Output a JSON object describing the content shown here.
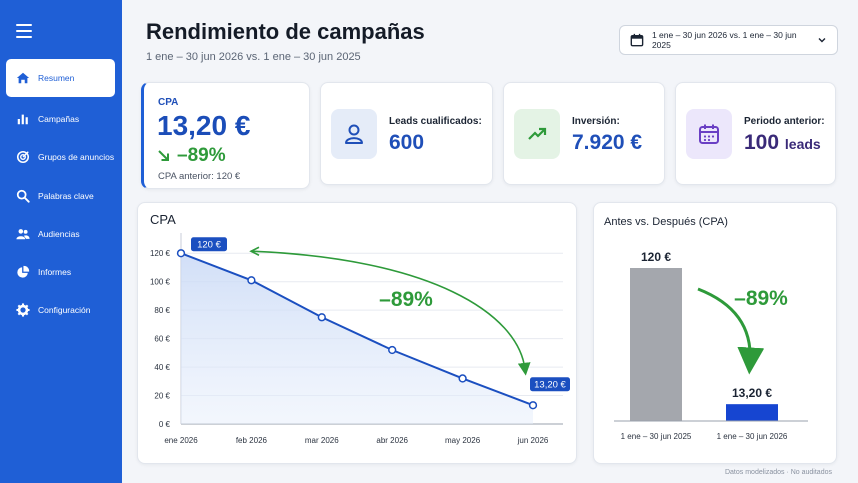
{
  "sidebar": {
    "items": [
      {
        "label": "Resumen",
        "icon": "home-icon",
        "active": true
      },
      {
        "label": "Campañas",
        "icon": "bar-chart-icon"
      },
      {
        "label": "Grupos de anuncios",
        "icon": "target-icon"
      },
      {
        "label": "Palabras clave",
        "icon": "search-icon"
      },
      {
        "label": "Audiencias",
        "icon": "users-icon"
      },
      {
        "label": "Informes",
        "icon": "pie-chart-icon"
      },
      {
        "label": "Configuración",
        "icon": "gear-icon"
      }
    ]
  },
  "header": {
    "title": "Rendimiento de campañas",
    "subtitle": "1 ene – 30 jun 2026 vs. 1 ene – 30 jun 2025",
    "date_range": "1 ene – 30 jun 2026 vs. 1 ene – 30 jun 2025"
  },
  "kpis": {
    "cpa": {
      "label": "CPA",
      "value": "13,20 €",
      "change": "–89%",
      "previous": "CPA anterior: 120 €"
    },
    "leads": {
      "label": "Leads cualificados:",
      "value": "600",
      "icon": "user-icon"
    },
    "spend": {
      "label": "Inversión:",
      "value": "7.920 €",
      "icon": "trend-up-icon"
    },
    "previous": {
      "label": "Periodo anterior:",
      "value": "100",
      "unit": "leads",
      "icon": "calendar-icon"
    }
  },
  "colors": {
    "accent": "#1f5fd6",
    "positive": "#2e9a3a",
    "neutral_bar": "#a4a7ad"
  },
  "chart_data": [
    {
      "type": "area",
      "title": "CPA",
      "categories": [
        "ene 2026",
        "feb 2026",
        "mar 2026",
        "abr 2026",
        "may 2026",
        "jun 2026"
      ],
      "values": [
        120,
        101,
        75,
        52,
        32,
        13.2
      ],
      "yticks": [
        "0 €",
        "20 €",
        "40 €",
        "60 €",
        "80 €",
        "100 €",
        "120 €"
      ],
      "ylim": [
        0,
        130
      ],
      "start_label": "120 €",
      "end_label": "13,20 €",
      "annotation": "–89%",
      "grid": true
    },
    {
      "type": "bar",
      "title": "Antes vs. Después (CPA)",
      "categories": [
        "1 ene – 30 jun 2025",
        "1 ene – 30 jun 2026"
      ],
      "values": [
        120,
        13.2
      ],
      "value_labels": [
        "120 €",
        "13,20 €"
      ],
      "annotation": "–89%"
    }
  ],
  "footnote": "Datos modelizados · No auditados"
}
